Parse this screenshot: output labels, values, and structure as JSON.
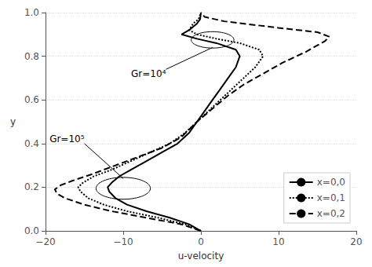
{
  "chart_data": {
    "type": "line",
    "title": "",
    "xlabel": "u-velocity",
    "ylabel": "y",
    "xlim": [
      -20,
      20
    ],
    "ylim": [
      0,
      1
    ],
    "xticks": [
      {
        "value": -20,
        "label": "−20"
      },
      {
        "value": -10,
        "label": "−10"
      },
      0,
      10,
      20
    ],
    "yticks": [
      {
        "value": 0,
        "label": "0.0"
      },
      0.2,
      0.4,
      0.6,
      0.8,
      {
        "value": 1,
        "label": "1.0"
      }
    ],
    "grid": "y",
    "legend": "lower right",
    "series": [
      {
        "name": "x=0,0",
        "color": "#000000",
        "line_style": "solid",
        "x": [
          0.0,
          -1.5,
          -4.0,
          -7.0,
          -9.5,
          -11.0,
          -11.8,
          -12.0,
          -11.5,
          -10.5,
          -9.0,
          -7.0,
          -5.0,
          -3.0,
          -1.5,
          -0.5,
          0.5,
          1.5,
          2.5,
          3.5,
          4.5,
          5.0,
          4.5,
          2.0,
          -0.5,
          -2.5,
          -1.5,
          -0.5,
          -0.1,
          0.0
        ],
        "values": [
          0.0,
          0.03,
          0.06,
          0.09,
          0.12,
          0.15,
          0.18,
          0.2,
          0.22,
          0.25,
          0.28,
          0.32,
          0.36,
          0.4,
          0.45,
          0.5,
          0.55,
          0.6,
          0.65,
          0.7,
          0.75,
          0.8,
          0.83,
          0.86,
          0.88,
          0.9,
          0.92,
          0.95,
          0.97,
          1.0
        ]
      },
      {
        "name": "x=0,1",
        "color": "#000000",
        "line_style": "dotted",
        "x": [
          0.0,
          -2.0,
          -5.5,
          -9.5,
          -12.5,
          -14.5,
          -15.5,
          -15.8,
          -15.2,
          -13.8,
          -11.5,
          -9.0,
          -6.5,
          -4.0,
          -2.0,
          -0.5,
          1.0,
          2.5,
          4.0,
          5.5,
          7.0,
          8.0,
          7.5,
          5.0,
          2.0,
          -0.5,
          -1.5,
          -1.0,
          -0.3,
          0.0
        ],
        "values": [
          0.0,
          0.03,
          0.06,
          0.09,
          0.12,
          0.15,
          0.18,
          0.2,
          0.22,
          0.25,
          0.28,
          0.32,
          0.36,
          0.4,
          0.45,
          0.5,
          0.55,
          0.6,
          0.65,
          0.7,
          0.75,
          0.8,
          0.83,
          0.86,
          0.88,
          0.9,
          0.92,
          0.95,
          0.97,
          1.0
        ]
      },
      {
        "name": "x=0,2",
        "color": "#000000",
        "line_style": "dashed",
        "x": [
          0.0,
          -2.5,
          -7.0,
          -11.5,
          -15.0,
          -17.5,
          -18.5,
          -18.8,
          -18.0,
          -16.5,
          -14.0,
          -11.0,
          -8.0,
          -5.0,
          -2.5,
          -0.5,
          1.5,
          3.5,
          5.5,
          8.0,
          10.5,
          13.5,
          15.0,
          16.0,
          16.5,
          15.0,
          10.0,
          3.0,
          0.5,
          0.0
        ],
        "values": [
          0.0,
          0.03,
          0.06,
          0.09,
          0.12,
          0.15,
          0.17,
          0.19,
          0.21,
          0.23,
          0.26,
          0.3,
          0.34,
          0.38,
          0.43,
          0.5,
          0.56,
          0.62,
          0.67,
          0.72,
          0.77,
          0.82,
          0.85,
          0.87,
          0.89,
          0.91,
          0.93,
          0.96,
          0.98,
          1.0
        ]
      }
    ],
    "ellipses": [
      {
        "cx": 1.5,
        "cy": 0.875,
        "width": 5.5,
        "height": 0.075
      },
      {
        "cx": -10.0,
        "cy": 0.195,
        "width": 7.0,
        "height": 0.1
      }
    ],
    "annotations": [
      {
        "text": "Gr=10⁴",
        "xy": [
          1.5,
          0.84
        ],
        "xytext": [
          -4.5,
          0.74
        ]
      },
      {
        "text": "Gr=10⁵",
        "xy": [
          -10.0,
          0.24
        ],
        "xytext": [
          -15.0,
          0.4
        ]
      }
    ]
  }
}
